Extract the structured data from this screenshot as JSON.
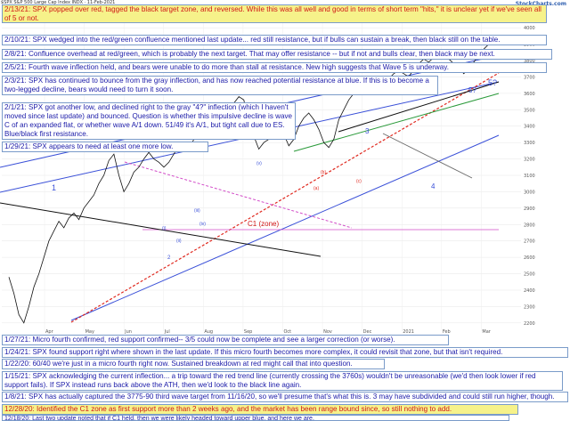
{
  "header": {
    "symbol_line": "$SPX S&P 500 Large Cap Index INDX",
    "date_line": "11-Feb-2021",
    "brand": "StockCharts.com"
  },
  "notes": [
    {
      "id": "n1",
      "color": "red",
      "text": "2/13/21:  SPX popped over red, tagged the black target zone, and reversed.  While this was all well and good in terms of short term \"hits,\" it is unclear yet if we've seen all of 5 or not."
    },
    {
      "id": "n2",
      "color": "blue",
      "text": "2/10/21:  SPX wedged into the red/green confluence mentioned last update... red still resistance, but if bulls can sustain a break, then black still on the table."
    },
    {
      "id": "n3",
      "color": "blue",
      "text": "2/8/21:  Confluence overhead at red/green, which is probably the next target.  That may offer resistance -- but if not and bulls clear, then black may be next."
    },
    {
      "id": "n4",
      "color": "blue",
      "text": "2/5/21:  Fourth wave inflection held, and bears were unable to do more than stall at resistance.  New high suggests that Wave 5 is underway."
    },
    {
      "id": "n5",
      "color": "blue",
      "text": "2/3/21:  SPX has continued to bounce from the gray inflection, and has now reached potential resistance at blue.  If this is to become a two-legged decline, bears would need to turn it soon."
    },
    {
      "id": "n6",
      "color": "blue",
      "text": "2/1/21:  SPX got another low, and declined right to the gray \"4?\" inflection (which I haven't moved since last update) and bounced.  Question is whether this impulsive decline is wave C of an expanded flat, or whether wave A/1 down.  51/49 it's A/1, but tight call due to ES.  Blue/black first resistance."
    },
    {
      "id": "n7",
      "color": "blue",
      "text": "1/29/21:  SPX appears to need at least one more low."
    },
    {
      "id": "n8",
      "color": "blue",
      "text": "1/27/21:  Micro fourth confirmed, red support confirmed-- 3/5 could now be complete and see a larger correction (or worse)."
    },
    {
      "id": "n9",
      "color": "blue",
      "text": "1/24/21:  SPX found support right where shown in the last update.  If this micro fourth becomes more complex, it could revisit that zone, but that isn't required."
    },
    {
      "id": "n10",
      "color": "blue",
      "text": "1/22/20:  60/40 we're just in a micro fourth right now.  Sustained breakdown at red might call that into question."
    },
    {
      "id": "n11",
      "color": "blue",
      "text": "1/15/21:  SPX acknowledging the current inflection... a trip toward the red trend line (currently crossing the 3760s) wouldn't be unreasonable (we'd then look lower if red support fails).  If SPX instead runs back above the ATH, then we'd look to the black line again."
    },
    {
      "id": "n12",
      "color": "blue",
      "text": "1/8/21:  SPX has actually captured the 3775-90 third wave target from 11/16/20, so we'll presume that's what this is.  3 may have subdivided and could still run higher, though."
    },
    {
      "id": "n13",
      "color": "red",
      "text": "12/28/20:  Identified the C1 zone as first support more than 2 weeks ago, and the market has been range bound since, so still nothing to add."
    },
    {
      "id": "n14",
      "color": "blue",
      "text": "12/18/20:  Last two update noted that if C1 held, then we were likely headed toward upper blue, and here we are."
    }
  ],
  "chart_data": {
    "type": "line",
    "title": "",
    "xlabel": "",
    "ylabel": "",
    "x_ticks": [
      "Apr",
      "May",
      "Jun",
      "Jul",
      "Aug",
      "Sep",
      "Oct",
      "Nov",
      "Dec",
      "2021",
      "Feb",
      "Mar"
    ],
    "y_ticks": [
      2200,
      2300,
      2400,
      2500,
      2600,
      2700,
      2800,
      2900,
      3000,
      3100,
      3200,
      3300,
      3400,
      3500,
      3600,
      3700,
      3800,
      3900,
      4000
    ],
    "ylim": [
      2150,
      4050
    ],
    "grid": true,
    "series": [
      {
        "values": [
          2480,
          2380,
          2250,
          2200,
          2300,
          2420,
          2500,
          2600,
          2700,
          2760,
          2820,
          2780,
          2840,
          2870,
          2830,
          2900,
          2940,
          2980,
          3050,
          3100,
          3190,
          3230,
          3100,
          3000,
          3050,
          3120,
          3150,
          3200,
          3240,
          3200,
          3180,
          3150,
          3180,
          3230,
          3280,
          3300,
          3260,
          3320,
          3350,
          3380,
          3390,
          3400,
          3440,
          3480,
          3500,
          3540,
          3580,
          3560,
          3400,
          3340,
          3260,
          3300,
          3320,
          3380,
          3420,
          3350,
          3280,
          3320,
          3400,
          3450,
          3480,
          3440,
          3380,
          3300,
          3270,
          3320,
          3440,
          3500,
          3560,
          3600,
          3630,
          3640,
          3620,
          3660,
          3680,
          3700,
          3690,
          3720,
          3740,
          3720,
          3700,
          3750,
          3780,
          3810,
          3790,
          3820,
          3850,
          3840,
          3810,
          3780,
          3760,
          3720,
          3750,
          3790,
          3830,
          3870,
          3900,
          3920,
          3910
        ],
        "color": "#111111"
      }
    ],
    "wave_labels": [
      "1",
      "2",
      "(i)",
      "(ii)",
      "(iii)",
      "(iv)",
      "(v)",
      "(a)",
      "(b)",
      "(c)",
      "3",
      "4",
      "5?",
      "5?",
      "C1 (zone)"
    ],
    "colors": {
      "blue": "#3a50d8",
      "red": "#e02a20",
      "magenta": "#d24cc8",
      "black": "#111111",
      "gray": "#888888"
    }
  }
}
